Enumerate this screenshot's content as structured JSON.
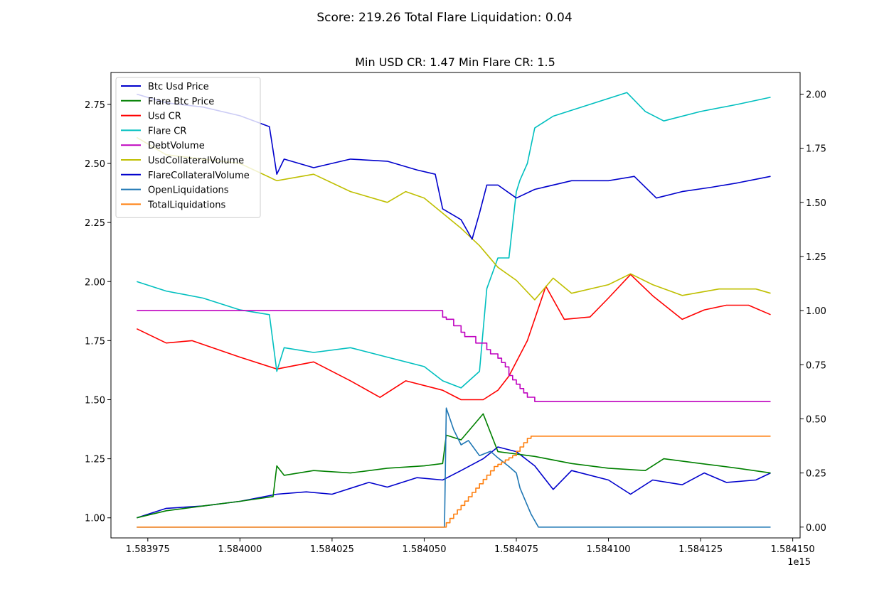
{
  "chart_data": {
    "type": "line",
    "suptitle": "Score: 219.26 Total Flare Liquidation: 0.04",
    "title": "Min USD CR: 1.47 Min Flare CR: 1.5",
    "xlabel": "",
    "ylabel": "",
    "x_offset_label": "1e15",
    "xlim": [
      1583965,
      1584152
    ],
    "ylim_left": [
      0.915,
      2.885
    ],
    "ylim_right": [
      -0.05,
      2.1
    ],
    "grid": false,
    "legend_position": "upper-left",
    "x_ticks": [
      {
        "value": 1583975,
        "label": "1.583975"
      },
      {
        "value": 1584000,
        "label": "1.584000"
      },
      {
        "value": 1584025,
        "label": "1.584025"
      },
      {
        "value": 1584050,
        "label": "1.584050"
      },
      {
        "value": 1584075,
        "label": "1.584075"
      },
      {
        "value": 1584100,
        "label": "1.584100"
      },
      {
        "value": 1584125,
        "label": "1.584125"
      },
      {
        "value": 1584150,
        "label": "1.584150"
      }
    ],
    "y_left_ticks": [
      {
        "value": 1.0,
        "label": "1.00"
      },
      {
        "value": 1.25,
        "label": "1.25"
      },
      {
        "value": 1.5,
        "label": "1.50"
      },
      {
        "value": 1.75,
        "label": "1.75"
      },
      {
        "value": 2.0,
        "label": "2.00"
      },
      {
        "value": 2.25,
        "label": "2.25"
      },
      {
        "value": 2.5,
        "label": "2.50"
      },
      {
        "value": 2.75,
        "label": "2.75"
      }
    ],
    "y_right_ticks": [
      {
        "value": 0.0,
        "label": "0.00"
      },
      {
        "value": 0.25,
        "label": "0.25"
      },
      {
        "value": 0.5,
        "label": "0.50"
      },
      {
        "value": 0.75,
        "label": "0.75"
      },
      {
        "value": 1.0,
        "label": "1.00"
      },
      {
        "value": 1.25,
        "label": "1.25"
      },
      {
        "value": 1.5,
        "label": "1.50"
      },
      {
        "value": 1.75,
        "label": "1.75"
      },
      {
        "value": 2.0,
        "label": "2.00"
      }
    ],
    "series": [
      {
        "name": "Btc Usd Price",
        "color": "#0000cc",
        "axis": "left",
        "x": [
          1583972,
          1583980,
          1583990,
          1584000,
          1584010,
          1584018,
          1584025,
          1584035,
          1584040,
          1584048,
          1584055,
          1584060,
          1584066,
          1584070,
          1584075,
          1584080,
          1584085,
          1584090,
          1584100,
          1584106,
          1584112,
          1584120,
          1584126,
          1584132,
          1584140,
          1584144
        ],
        "y": [
          1.0,
          1.04,
          1.05,
          1.07,
          1.1,
          1.11,
          1.1,
          1.15,
          1.13,
          1.17,
          1.16,
          1.2,
          1.25,
          1.3,
          1.28,
          1.22,
          1.12,
          1.2,
          1.16,
          1.1,
          1.16,
          1.14,
          1.19,
          1.15,
          1.16,
          1.19
        ]
      },
      {
        "name": "Flare Btc Price",
        "color": "#008000",
        "axis": "left",
        "x": [
          1583972,
          1583980,
          1583990,
          1584000,
          1584009,
          1584010,
          1584012,
          1584020,
          1584030,
          1584040,
          1584050,
          1584055,
          1584056,
          1584060,
          1584066,
          1584070,
          1584080,
          1584090,
          1584100,
          1584110,
          1584115,
          1584125,
          1584135,
          1584144
        ],
        "y": [
          1.0,
          1.03,
          1.05,
          1.07,
          1.09,
          1.22,
          1.18,
          1.2,
          1.19,
          1.21,
          1.22,
          1.23,
          1.35,
          1.33,
          1.44,
          1.28,
          1.26,
          1.23,
          1.21,
          1.2,
          1.25,
          1.23,
          1.21,
          1.19
        ]
      },
      {
        "name": "Usd CR",
        "color": "#ff0000",
        "axis": "left",
        "x": [
          1583972,
          1583980,
          1583987,
          1584000,
          1584010,
          1584020,
          1584030,
          1584038,
          1584045,
          1584055,
          1584060,
          1584066,
          1584070,
          1584073,
          1584078,
          1584083,
          1584088,
          1584095,
          1584100,
          1584106,
          1584112,
          1584120,
          1584126,
          1584132,
          1584138,
          1584144
        ],
        "y": [
          1.8,
          1.74,
          1.75,
          1.68,
          1.63,
          1.66,
          1.58,
          1.51,
          1.58,
          1.54,
          1.5,
          1.5,
          1.54,
          1.6,
          1.75,
          1.98,
          1.84,
          1.85,
          1.93,
          2.03,
          1.94,
          1.84,
          1.88,
          1.9,
          1.9,
          1.86
        ]
      },
      {
        "name": "Flare CR",
        "color": "#00bfbf",
        "axis": "left",
        "x": [
          1583972,
          1583980,
          1583990,
          1584000,
          1584008,
          1584010,
          1584012,
          1584020,
          1584030,
          1584040,
          1584050,
          1584055,
          1584060,
          1584065,
          1584067,
          1584070,
          1584073,
          1584075,
          1584076,
          1584078,
          1584080,
          1584085,
          1584095,
          1584105,
          1584110,
          1584115,
          1584125,
          1584135,
          1584144
        ],
        "y": [
          2.0,
          1.96,
          1.93,
          1.88,
          1.86,
          1.62,
          1.72,
          1.7,
          1.72,
          1.68,
          1.64,
          1.58,
          1.55,
          1.62,
          1.97,
          2.1,
          2.1,
          2.38,
          2.43,
          2.5,
          2.65,
          2.7,
          2.75,
          2.8,
          2.72,
          2.68,
          2.72,
          2.75,
          2.78
        ]
      },
      {
        "name": "DebtVolume",
        "color": "#bf00bf",
        "axis": "right",
        "step": true,
        "x": [
          1583972,
          1584055,
          1584056,
          1584057,
          1584058,
          1584059,
          1584060,
          1584061,
          1584063,
          1584064,
          1584066,
          1584067,
          1584068,
          1584070,
          1584071,
          1584072,
          1584073,
          1584074,
          1584075,
          1584076,
          1584077,
          1584078,
          1584080,
          1584144
        ],
        "y": [
          1.0,
          0.97,
          0.96,
          0.96,
          0.93,
          0.93,
          0.9,
          0.88,
          0.88,
          0.85,
          0.85,
          0.82,
          0.8,
          0.78,
          0.76,
          0.74,
          0.7,
          0.68,
          0.66,
          0.64,
          0.62,
          0.6,
          0.58,
          0.58
        ]
      },
      {
        "name": "UsdCollateralVolume",
        "color": "#bfbf00",
        "axis": "right",
        "x": [
          1583972,
          1583980,
          1583990,
          1584000,
          1584010,
          1584020,
          1584030,
          1584040,
          1584045,
          1584050,
          1584055,
          1584060,
          1584065,
          1584070,
          1584075,
          1584080,
          1584085,
          1584090,
          1584100,
          1584106,
          1584112,
          1584120,
          1584130,
          1584140,
          1584144
        ],
        "y": [
          1.8,
          1.72,
          1.7,
          1.68,
          1.6,
          1.63,
          1.55,
          1.5,
          1.55,
          1.52,
          1.45,
          1.38,
          1.3,
          1.2,
          1.14,
          1.05,
          1.15,
          1.08,
          1.12,
          1.17,
          1.12,
          1.07,
          1.1,
          1.1,
          1.08
        ]
      },
      {
        "name": "FlareCollateralVolume",
        "color": "#0000cc",
        "axis": "right",
        "x": [
          1583972,
          1583980,
          1583990,
          1584000,
          1584008,
          1584010,
          1584012,
          1584020,
          1584030,
          1584040,
          1584048,
          1584053,
          1584055,
          1584060,
          1584063,
          1584065,
          1584067,
          1584070,
          1584075,
          1584080,
          1584090,
          1584100,
          1584107,
          1584113,
          1584120,
          1584128,
          1584135,
          1584144
        ],
        "y": [
          2.0,
          1.96,
          1.94,
          1.9,
          1.85,
          1.63,
          1.7,
          1.66,
          1.7,
          1.69,
          1.65,
          1.63,
          1.47,
          1.42,
          1.33,
          1.45,
          1.58,
          1.58,
          1.52,
          1.56,
          1.6,
          1.6,
          1.62,
          1.52,
          1.55,
          1.57,
          1.59,
          1.62
        ]
      },
      {
        "name": "OpenLiquidations",
        "color": "#1f77b4",
        "axis": "right",
        "x": [
          1583972,
          1584055.5,
          1584056,
          1584058,
          1584060,
          1584062,
          1584065,
          1584068,
          1584070,
          1584073,
          1584075,
          1584076,
          1584078,
          1584079,
          1584081,
          1584144
        ],
        "y": [
          0.0,
          0.0,
          0.55,
          0.45,
          0.38,
          0.4,
          0.33,
          0.35,
          0.32,
          0.28,
          0.25,
          0.18,
          0.1,
          0.06,
          0.0,
          0.0
        ]
      },
      {
        "name": "TotalLiquidations",
        "color": "#ff7f0e",
        "axis": "right",
        "step": true,
        "x": [
          1583972,
          1584056,
          1584057,
          1584058,
          1584059,
          1584060,
          1584061,
          1584062,
          1584063,
          1584064,
          1584065,
          1584066,
          1584067,
          1584068,
          1584069,
          1584070,
          1584071,
          1584072,
          1584073,
          1584074,
          1584075,
          1584076,
          1584077,
          1584078,
          1584079,
          1584080,
          1584144
        ],
        "y": [
          0.0,
          0.02,
          0.04,
          0.06,
          0.08,
          0.1,
          0.12,
          0.14,
          0.16,
          0.18,
          0.2,
          0.22,
          0.24,
          0.26,
          0.28,
          0.29,
          0.3,
          0.31,
          0.32,
          0.33,
          0.35,
          0.37,
          0.39,
          0.41,
          0.42,
          0.42,
          0.42
        ]
      }
    ]
  }
}
